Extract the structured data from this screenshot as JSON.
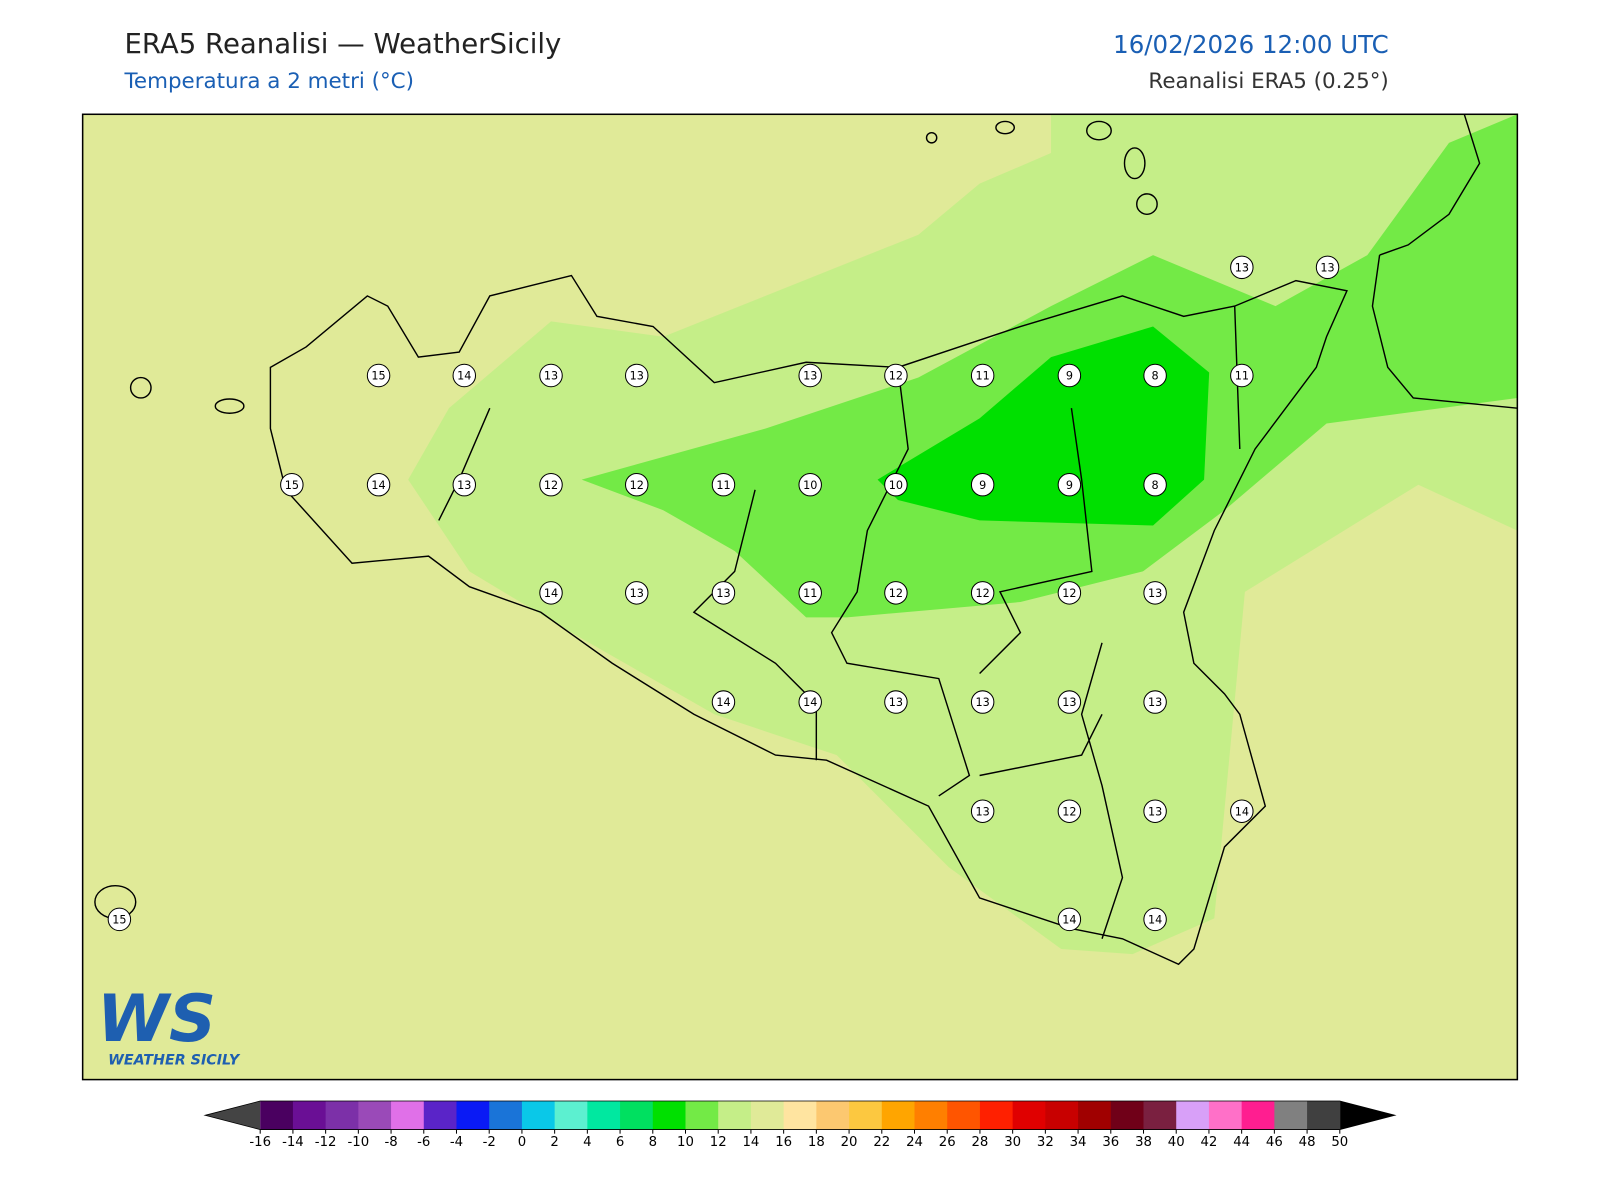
{
  "header": {
    "title": "ERA5 Reanalisi — WeatherSicily",
    "subtitle": "Temperatura a 2 metri (°C)",
    "datetime": "16/02/2026 12:00 UTC",
    "source": "Reanalisi ERA5 (0.25°)"
  },
  "map": {
    "points": [
      13,
      13,
      15,
      14,
      13,
      13,
      13,
      12,
      11,
      9,
      8,
      11,
      15,
      14,
      13,
      12,
      12,
      11,
      10,
      10,
      9,
      9,
      8,
      14,
      13,
      13,
      11,
      12,
      12,
      12,
      13,
      14,
      14,
      13,
      13,
      13,
      13,
      13,
      12,
      13,
      14,
      15,
      14,
      14
    ]
  },
  "colorbar": {
    "ticks": [
      -16,
      -14,
      -12,
      -10,
      -8,
      -6,
      -4,
      -2,
      0,
      2,
      4,
      6,
      8,
      10,
      12,
      14,
      16,
      18,
      20,
      22,
      24,
      26,
      28,
      30,
      32,
      34,
      36,
      38,
      40,
      42,
      44,
      46,
      48,
      50
    ],
    "colors": [
      "#4a0060",
      "#6a0f95",
      "#7c30a8",
      "#9a4ab8",
      "#e070e8",
      "#5a24c8",
      "#0a1af5",
      "#1a74d8",
      "#0ac8e8",
      "#5cf0d0",
      "#00e8a0",
      "#00e060",
      "#00e000",
      "#73ea46",
      "#c5ee88",
      "#e0ea98",
      "#ffe4a0",
      "#fcc870",
      "#fcc840",
      "#ffa500",
      "#ff7f00",
      "#ff5500",
      "#ff2000",
      "#e00000",
      "#c80000",
      "#a00000",
      "#700018",
      "#7a2040",
      "#d8a0f8",
      "#ff70c8",
      "#ff1e90",
      "#808080",
      "#404040"
    ],
    "under_color": "#444444",
    "over_color": "#000000"
  },
  "logo": {
    "mark": "WS",
    "text": "WEATHER SICILY"
  }
}
